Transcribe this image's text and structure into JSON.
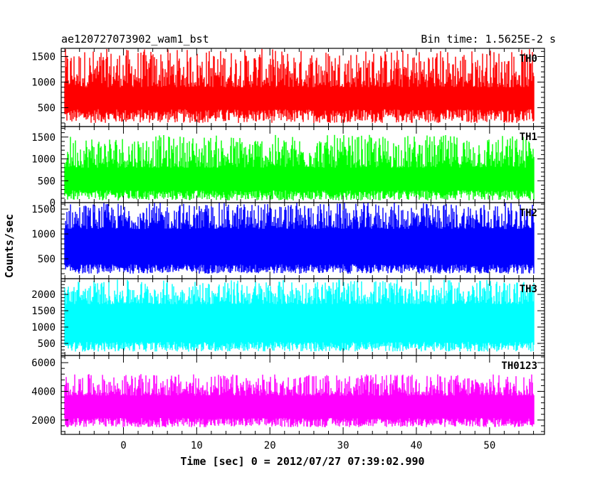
{
  "header": {
    "left": "ae120727073902_wam1_bst",
    "right": "Bin time: 1.5625E-2 s"
  },
  "chart_data": {
    "type": "line",
    "title": "ae120727073902_wam1_bst",
    "subtitle": "Bin time: 1.5625E-2 s",
    "xlabel": "Time [sec] 0 = 2012/07/27 07:39:02.990",
    "ylabel": "Counts/sec",
    "xlim": [
      -8.5,
      57.5
    ],
    "x_ticks": [
      0,
      10,
      20,
      30,
      40,
      50
    ],
    "data_x_range": [
      -8.0,
      56.0
    ],
    "panels": [
      {
        "name": "TH0",
        "color": "#ff0000",
        "ylim": [
          130,
          1660
        ],
        "y_ticks": [
          500,
          1000,
          1500
        ],
        "baseline": [
          200,
          470
        ],
        "peak": [
          900,
          1650
        ]
      },
      {
        "name": "TH1",
        "color": "#00ff00",
        "ylim": [
          0,
          1740
        ],
        "y_ticks": [
          0,
          500,
          1000,
          1500
        ],
        "baseline": [
          50,
          280
        ],
        "peak": [
          800,
          1550
        ]
      },
      {
        "name": "TH2",
        "color": "#0000ff",
        "ylim": [
          100,
          1630
        ],
        "y_ticks": [
          500,
          1000,
          1500
        ],
        "baseline": [
          200,
          390
        ],
        "peak": [
          1100,
          1630
        ]
      },
      {
        "name": "TH3",
        "color": "#00ffff",
        "ylim": [
          130,
          2480
        ],
        "y_ticks": [
          500,
          1000,
          1500,
          2000
        ],
        "baseline": [
          250,
          550
        ],
        "peak": [
          1700,
          2450
        ]
      },
      {
        "name": "TH0123",
        "color": "#ff00ff",
        "ylim": [
          1000,
          6500
        ],
        "y_ticks": [
          2000,
          4000,
          6000
        ],
        "baseline": [
          1500,
          2150
        ],
        "peak": [
          3700,
          5200
        ]
      }
    ]
  }
}
